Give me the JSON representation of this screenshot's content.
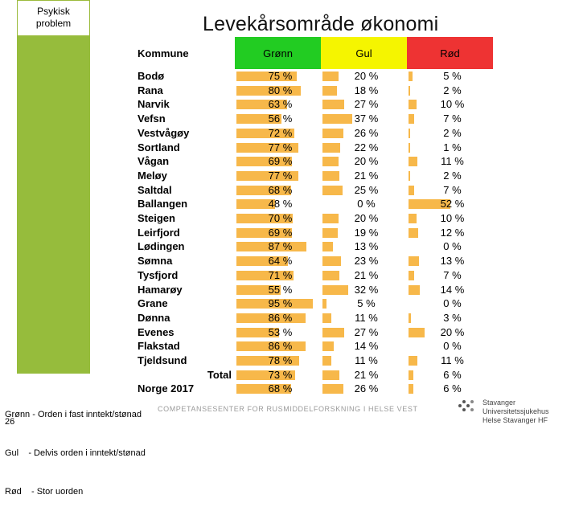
{
  "side": {
    "label_line1": "Psykisk",
    "label_line2": "problem"
  },
  "title": "Levekårsområde økonomi",
  "table": {
    "headers": {
      "kommune": "Kommune",
      "gronn": "Grønn",
      "gul": "Gul",
      "rod": "Rød"
    },
    "rows": [
      {
        "name": "Bodø",
        "g": "75 %",
        "y": "20 %",
        "r": "5 %"
      },
      {
        "name": "Rana",
        "g": "80 %",
        "y": "18 %",
        "r": "2 %"
      },
      {
        "name": "Narvik",
        "g": "63 %",
        "y": "27 %",
        "r": "10 %"
      },
      {
        "name": "Vefsn",
        "g": "56 %",
        "y": "37 %",
        "r": "7 %"
      },
      {
        "name": "Vestvågøy",
        "g": "72 %",
        "y": "26 %",
        "r": "2 %"
      },
      {
        "name": "Sortland",
        "g": "77 %",
        "y": "22 %",
        "r": "1 %"
      },
      {
        "name": "Vågan",
        "g": "69 %",
        "y": "20 %",
        "r": "11 %"
      },
      {
        "name": "Meløy",
        "g": "77 %",
        "y": "21 %",
        "r": "2 %"
      },
      {
        "name": "Saltdal",
        "g": "68 %",
        "y": "25 %",
        "r": "7 %"
      },
      {
        "name": "Ballangen",
        "g": "48 %",
        "y": "0 %",
        "r": "52 %"
      },
      {
        "name": "Steigen",
        "g": "70 %",
        "y": "20 %",
        "r": "10 %"
      },
      {
        "name": "Leirfjord",
        "g": "69 %",
        "y": "19 %",
        "r": "12 %"
      },
      {
        "name": "Lødingen",
        "g": "87 %",
        "y": "13 %",
        "r": "0 %"
      },
      {
        "name": "Sømna",
        "g": "64 %",
        "y": "23 %",
        "r": "13 %"
      },
      {
        "name": "Tysfjord",
        "g": "71 %",
        "y": "21 %",
        "r": "7 %"
      },
      {
        "name": "Hamarøy",
        "g": "55 %",
        "y": "32 %",
        "r": "14 %"
      },
      {
        "name": "Grane",
        "g": "95 %",
        "y": "5 %",
        "r": "0 %"
      },
      {
        "name": "Dønna",
        "g": "86 %",
        "y": "11 %",
        "r": "3 %"
      },
      {
        "name": "Evenes",
        "g": "53 %",
        "y": "27 %",
        "r": "20 %"
      },
      {
        "name": "Flakstad",
        "g": "86 %",
        "y": "14 %",
        "r": "0 %"
      },
      {
        "name": "Tjeldsund",
        "g": "78 %",
        "y": "11 %",
        "r": "11 %"
      },
      {
        "name": "Total",
        "g": "73 %",
        "y": "21 %",
        "r": "6 %",
        "total": true
      },
      {
        "name": "Norge 2017",
        "g": "68 %",
        "y": "26 %",
        "r": "6 %"
      }
    ]
  },
  "legend": {
    "line1": "Grønn - Orden i fast inntekt/stønad",
    "line2": "Gul    - Delvis orden i inntekt/stønad",
    "line3": "Rød    - Stor uorden"
  },
  "page_number": "26",
  "footer": "COMPETANSESENTER FOR RUSMIDDELFORSKNING I HELSE VEST",
  "logo": {
    "line1": "Stavanger Universitetssjukehus",
    "line2": "Helse Stavanger HF"
  },
  "colors": {
    "green": "#22cc22",
    "yellow": "#f5f500",
    "red": "#ee3333",
    "bar": "#f7b84a",
    "side": "#96bc3c"
  }
}
